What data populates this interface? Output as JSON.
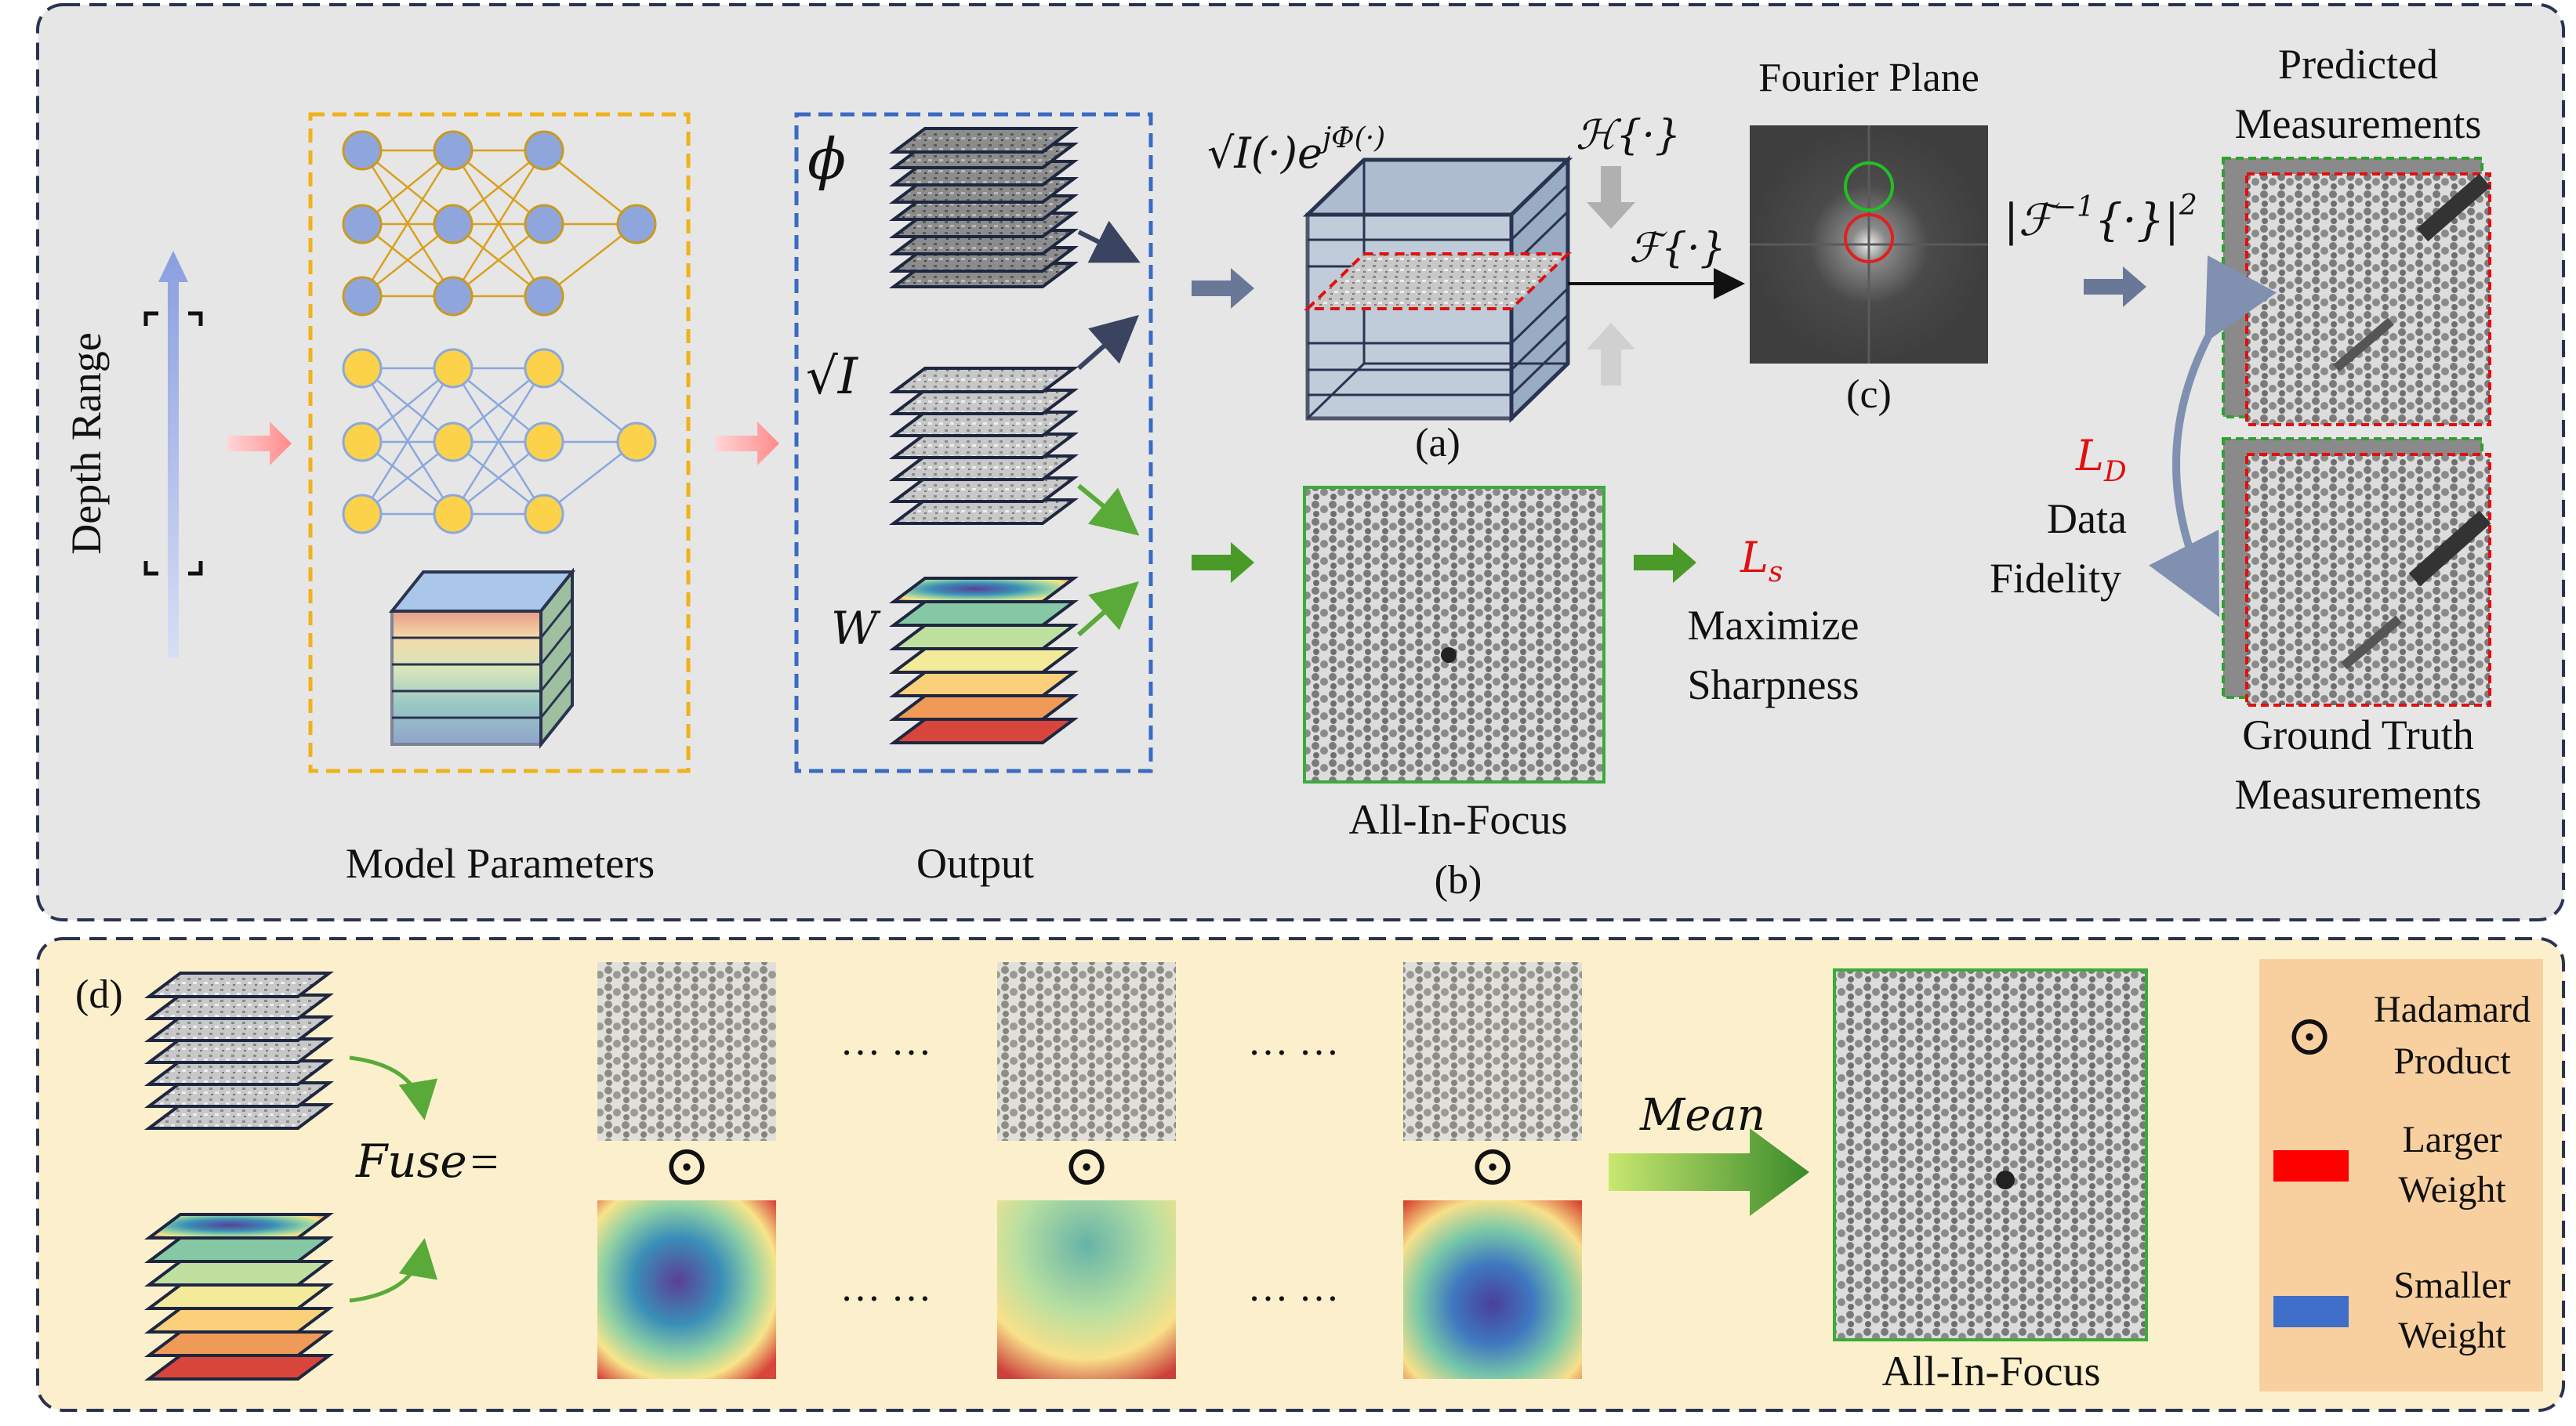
{
  "top_panel": {
    "depth_range": "Depth Range",
    "model_parameters": "Model Parameters",
    "output": "Output",
    "phi_symbol": "ϕ",
    "sqrt_i_symbol": "√I",
    "w_symbol": "W",
    "field_formula": "√I(·)e",
    "field_formula_exp": "jΦ(·)",
    "h_operator": "ℋ{·}",
    "f_operator": "ℱ{·}",
    "label_a": "(a)",
    "all_in_focus": "All-In-Focus",
    "label_b": "(b)",
    "ls_loss": "L",
    "ls_sub": "s",
    "maximize": "Maximize",
    "sharpness": "Sharpness",
    "fourier_plane": "Fourier Plane",
    "label_c": "(c)",
    "inverse_op": "|ℱ",
    "inverse_sup": "−1",
    "inverse_rest": "{·}|",
    "inverse_sq": "2",
    "predicted": "Predicted",
    "measurements": "Measurements",
    "ld_loss": "L",
    "ld_sub": "D",
    "data": "Data",
    "fidelity": "Fidelity",
    "ground_truth": "Ground Truth",
    "gt_measurements": "Measurements"
  },
  "bottom_panel": {
    "label_d": "(d)",
    "fuse": "Fuse",
    "equals": "=",
    "ellipsis": "… …",
    "hadamard_symbol": "⊙",
    "mean": "Mean",
    "all_in_focus": "All-In-Focus",
    "legend": {
      "hadamard": "Hadamard",
      "product": "Product",
      "larger": "Larger",
      "larger_weight": "Weight",
      "smaller": "Smaller",
      "smaller_weight": "Weight"
    }
  },
  "colors": {
    "top_bg": "#e6e6e6",
    "bottom_bg": "#fcf0cc",
    "legend_bg": "#f8d0a0",
    "yellow": "#f0b21a",
    "blue_dash": "#3a6bc4",
    "green": "#3caa3c",
    "red": "#e01010",
    "larger_swatch": "#ff0000",
    "smaller_swatch": "#3f6fc8",
    "navy": "#2a3350"
  }
}
